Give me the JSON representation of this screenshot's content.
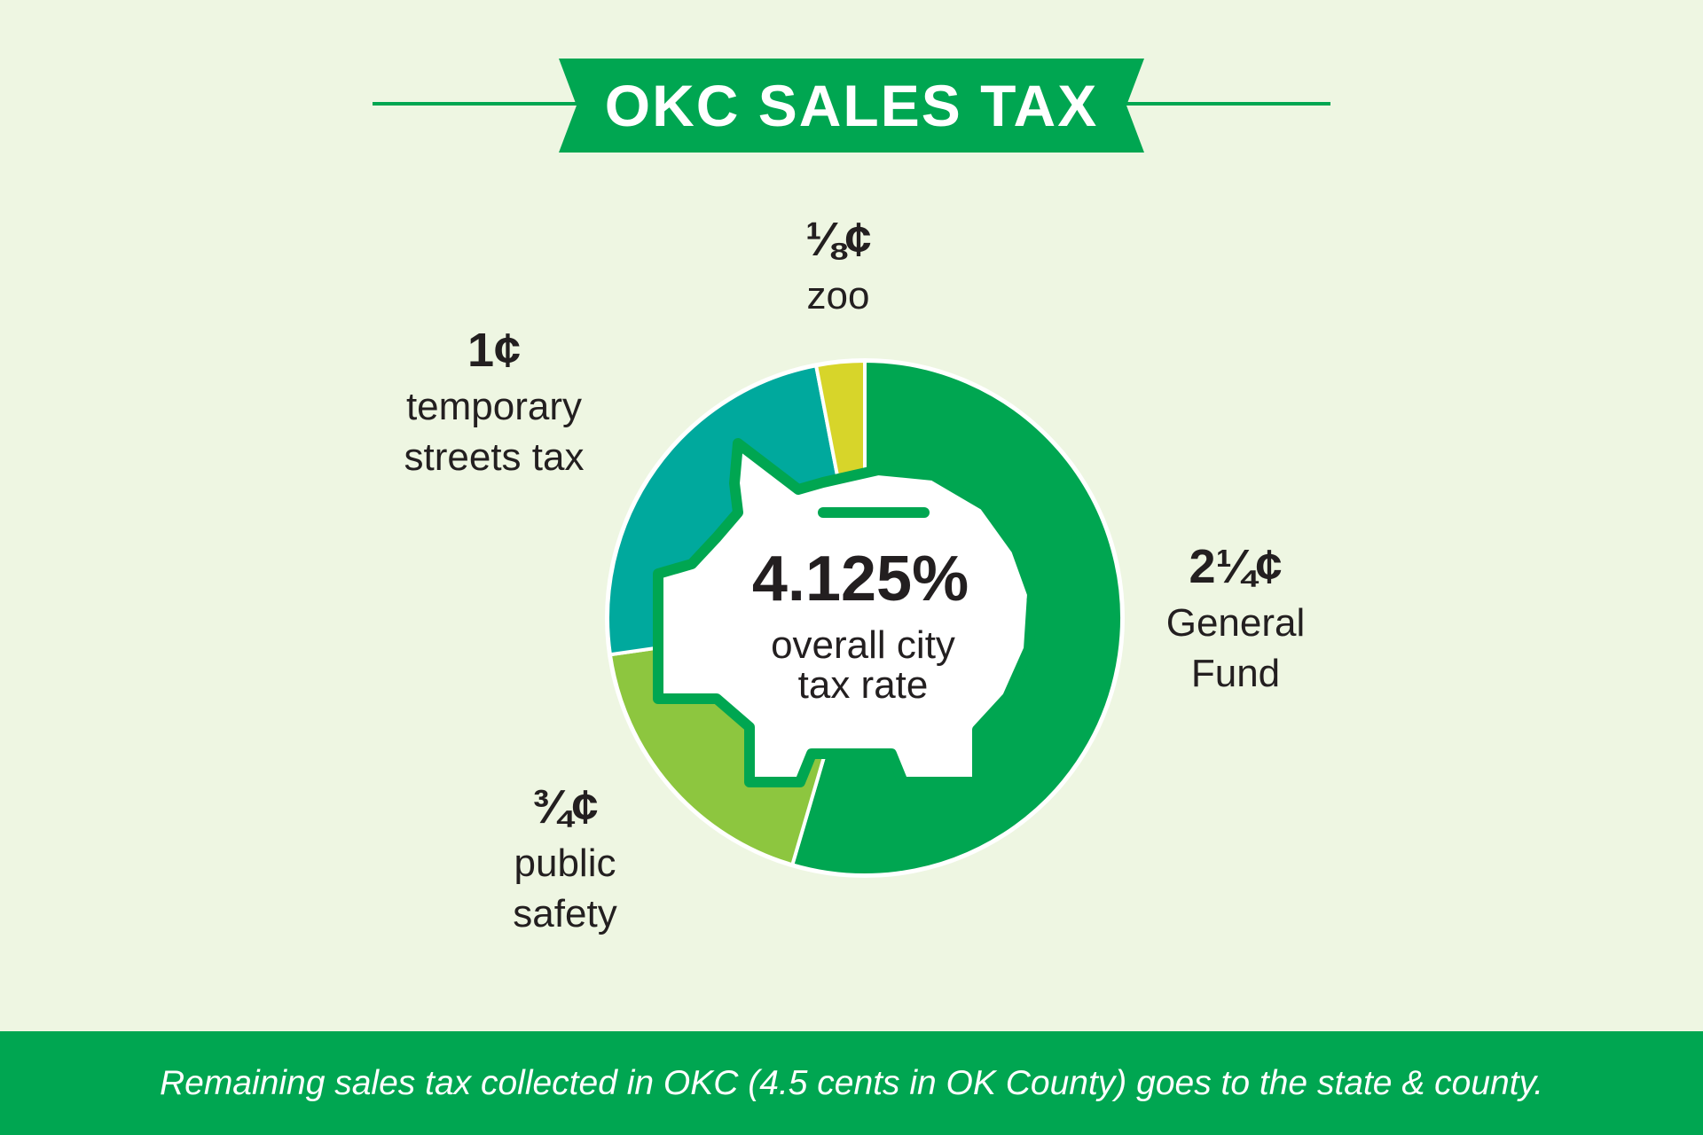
{
  "banner": {
    "title": "OKC SALES TAX"
  },
  "center": {
    "rate": "4.125%",
    "caption_line1": "overall city",
    "caption_line2": "tax rate"
  },
  "footer": {
    "note": "Remaining sales tax collected in OKC (4.5 cents in OK County) goes to the state & county."
  },
  "colors": {
    "background": "#eef6e2",
    "brand_green": "#00a651",
    "general_fund": "#00a651",
    "public_safety": "#8dc63f",
    "streets": "#00a99d",
    "zoo": "#d7d52a",
    "text": "#231f20"
  },
  "chart_data": {
    "type": "pie",
    "donut": true,
    "unit": "cents",
    "slices": [
      {
        "amount": "2¼¢",
        "value": 2.25,
        "label_lines": [
          "General",
          "Fund"
        ],
        "color": "#00a651"
      },
      {
        "amount": "¾¢",
        "value": 0.75,
        "label_lines": [
          "public",
          "safety"
        ],
        "color": "#8dc63f"
      },
      {
        "amount": "1¢",
        "value": 1.0,
        "label_lines": [
          "temporary",
          "streets tax"
        ],
        "color": "#00a99d"
      },
      {
        "amount": "⅛¢",
        "value": 0.125,
        "label_lines": [
          "zoo"
        ],
        "color": "#d7d52a"
      }
    ],
    "total": 4.125,
    "center_icon": "piggy-bank-icon"
  }
}
